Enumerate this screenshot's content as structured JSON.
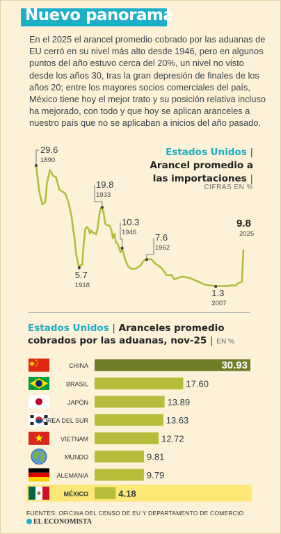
{
  "header": {
    "title": "Nuevo panorama"
  },
  "intro": "En el 2025 el arancel promedio cobrado por las aduanas de EU cerró en su nivel más alto desde 1946, pero en algunos puntos del año estuvo cerca del 20%, un nivel no visto desde los años 30, tras la gran depresión de finales de los años 20; entre los mayores socios comerciales del país, México tiene hoy el mejor trato y su posición relativa incluso ha mejorado, con todo y que hoy se aplican aranceles a nuestro país que no se aplicaban a inicios del año pasado.",
  "chart1": {
    "title_country": "Estados Unidos",
    "title_line1": "Arancel promedio a",
    "title_line2": "las importaciones",
    "unit": "CIFRAS EN %"
  },
  "chart2": {
    "title_country": "Estados Unidos",
    "title_text": "Aranceles promedio",
    "title_line2": "cobrados por las aduanas, nov-25",
    "unit": "EN %"
  },
  "chart_data": [
    {
      "type": "line",
      "title": "Arancel promedio a las importaciones",
      "unit": "CIFRAS EN %",
      "x": [
        1890,
        1892,
        1894,
        1896,
        1897,
        1899,
        1901,
        1903,
        1905,
        1907,
        1909,
        1911,
        1913,
        1914,
        1915,
        1916,
        1917,
        1918,
        1919,
        1920,
        1921,
        1922,
        1923,
        1924,
        1925,
        1926,
        1927,
        1928,
        1929,
        1930,
        1931,
        1932,
        1933,
        1934,
        1935,
        1936,
        1937,
        1938,
        1939,
        1940,
        1941,
        1942,
        1943,
        1944,
        1945,
        1946,
        1948,
        1950,
        1952,
        1955,
        1958,
        1960,
        1962,
        1965,
        1968,
        1970,
        1972,
        1975,
        1978,
        1980,
        1985,
        1990,
        1995,
        2000,
        2005,
        2007,
        2010,
        2015,
        2017,
        2020,
        2022,
        2024,
        2025
      ],
      "values": [
        29.6,
        23.5,
        20.5,
        21,
        25.5,
        28.5,
        27.2,
        26.8,
        24,
        23.5,
        23,
        21,
        17.7,
        14.9,
        12.5,
        8.9,
        7.2,
        5.7,
        6.3,
        6.4,
        11.4,
        14.7,
        15.2,
        14.9,
        13.7,
        14.4,
        13.8,
        13.8,
        13.5,
        14.8,
        17.8,
        19.6,
        19.8,
        18.4,
        16,
        15.7,
        15.6,
        15.5,
        14.4,
        12.6,
        13.6,
        11.6,
        11.3,
        10.3,
        9.3,
        10.3,
        7.5,
        6.0,
        5.4,
        5.5,
        6.2,
        7.3,
        7.6,
        7.7,
        6.5,
        6.1,
        5.5,
        3.9,
        4.0,
        3.0,
        3.6,
        3.3,
        2.5,
        1.7,
        1.5,
        1.3,
        1.4,
        1.4,
        1.6,
        1.5,
        2.2,
        2.4,
        9.8
      ],
      "labels": [
        {
          "value": "29.6",
          "year": "1890"
        },
        {
          "value": "5.7",
          "year": "1918"
        },
        {
          "value": "19.8",
          "year": "1933"
        },
        {
          "value": "10.3",
          "year": "1946"
        },
        {
          "value": "7.6",
          "year": "1962"
        },
        {
          "value": "1.3",
          "year": "2007"
        },
        {
          "value": "9.8",
          "year": "2025"
        }
      ],
      "color": "#b5be3a"
    },
    {
      "type": "bar",
      "title": "Aranceles promedio cobrados por las aduanas, nov-25",
      "unit": "EN %",
      "categories": [
        "CHINA",
        "BRASIL",
        "JAPÓN",
        "COREA DEL SUR",
        "VIETNAM",
        "MUNDO",
        "ALEMANIA",
        "MÉXICO"
      ],
      "values": [
        30.93,
        17.6,
        13.89,
        13.63,
        12.72,
        9.81,
        9.79,
        4.18
      ],
      "value_labels": [
        "30.93",
        "17.60",
        "13.89",
        "13.63",
        "12.72",
        "9.81",
        "9.79",
        "4.18"
      ],
      "flag_icons": [
        "china-flag-icon",
        "brazil-flag-icon",
        "japan-flag-icon",
        "south-korea-flag-icon",
        "vietnam-flag-icon",
        "world-globe-icon",
        "germany-flag-icon",
        "mexico-flag-icon"
      ],
      "colors": {
        "bar": "#b5be3a",
        "top_bar": "#6f7d26",
        "highlight_row": "#fde878"
      }
    }
  ],
  "footer": {
    "sources": "FUENTES: OFICINA DEL CENSO DE EU Y DEPARTAMENTO DE COMERCIO",
    "logo": "EL ECONOMISTA"
  }
}
